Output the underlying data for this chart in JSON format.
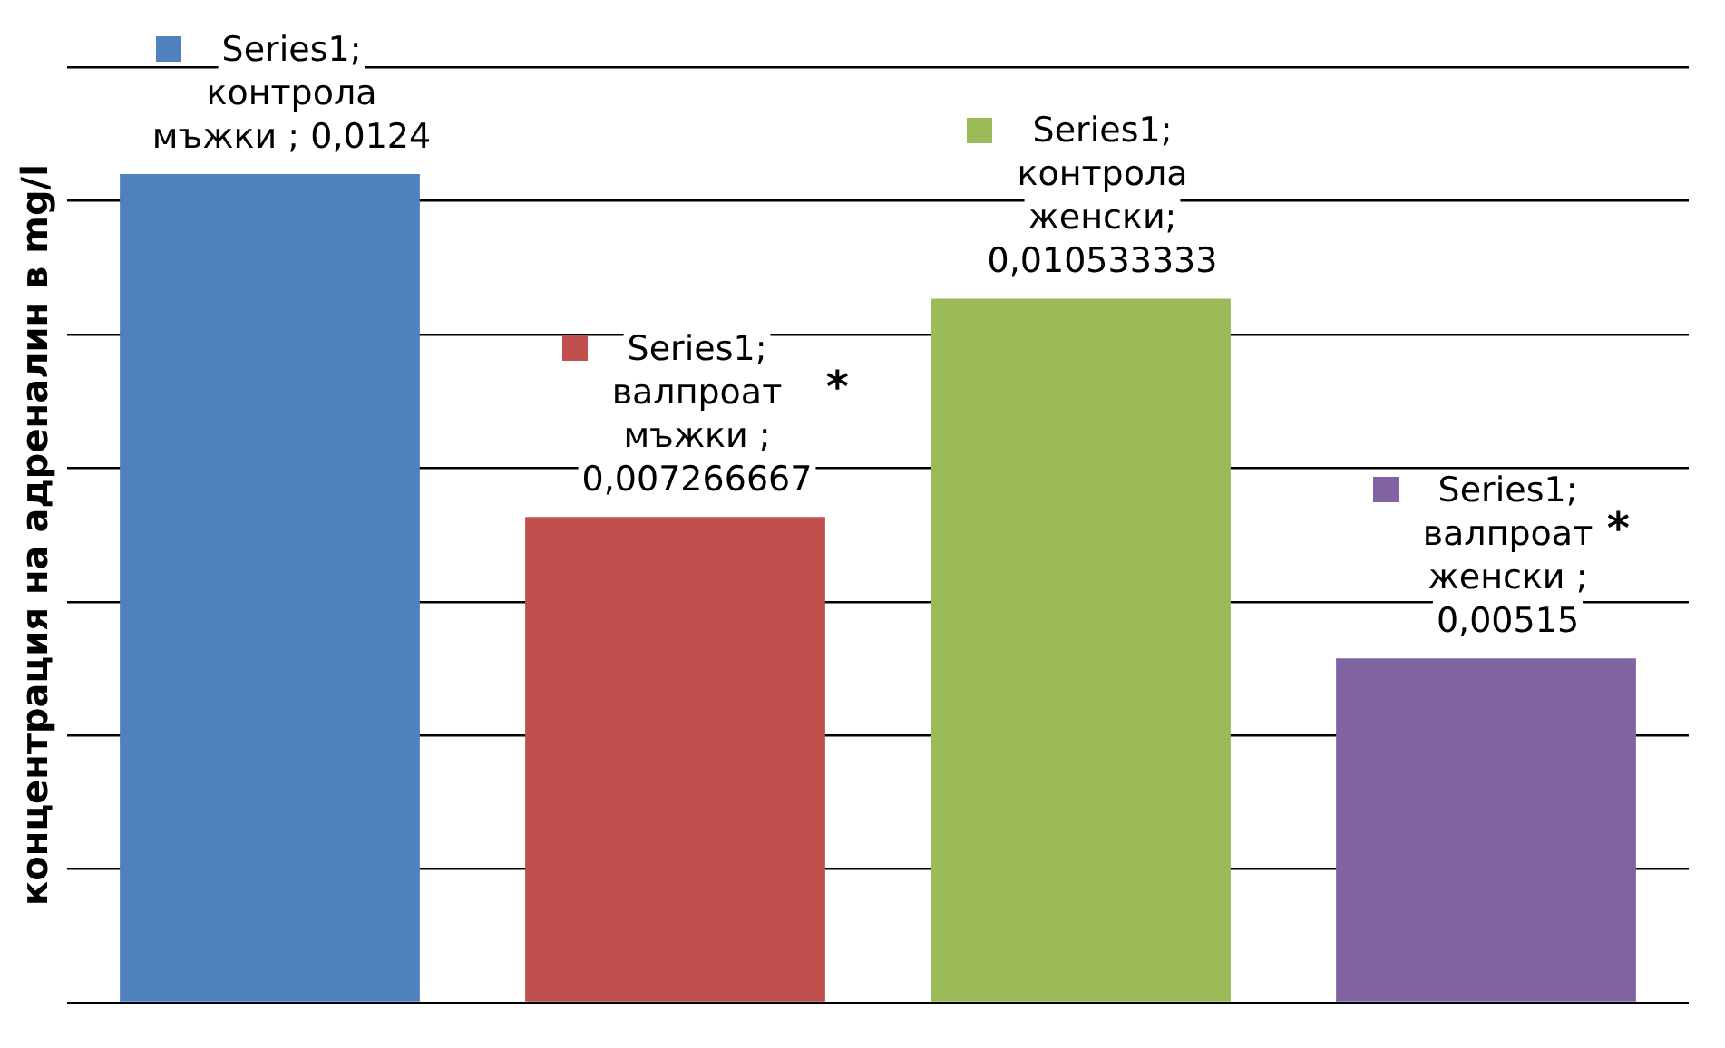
{
  "chart_data": {
    "type": "bar",
    "ylabel": "концентрация на адреналин в mg/l",
    "categories": [
      null,
      null,
      null,
      null
    ],
    "values": [
      0.0124,
      0.007266667,
      0.010533333,
      0.00515
    ],
    "colors": [
      "#4f81bd",
      "#c0504d",
      "#9bbb59",
      "#8064a2"
    ],
    "value_labels": [
      "Series1; контрола мъжки ; 0,0124",
      "Series1; валпроат мъжки ; 0,007266667",
      "Series1; контрола женски; 0,010533333",
      "Series1; валпроат женски ; 0,00515"
    ],
    "annotations": [
      "*",
      "*"
    ],
    "grid": "y",
    "tick_labels": false,
    "legend": false
  }
}
